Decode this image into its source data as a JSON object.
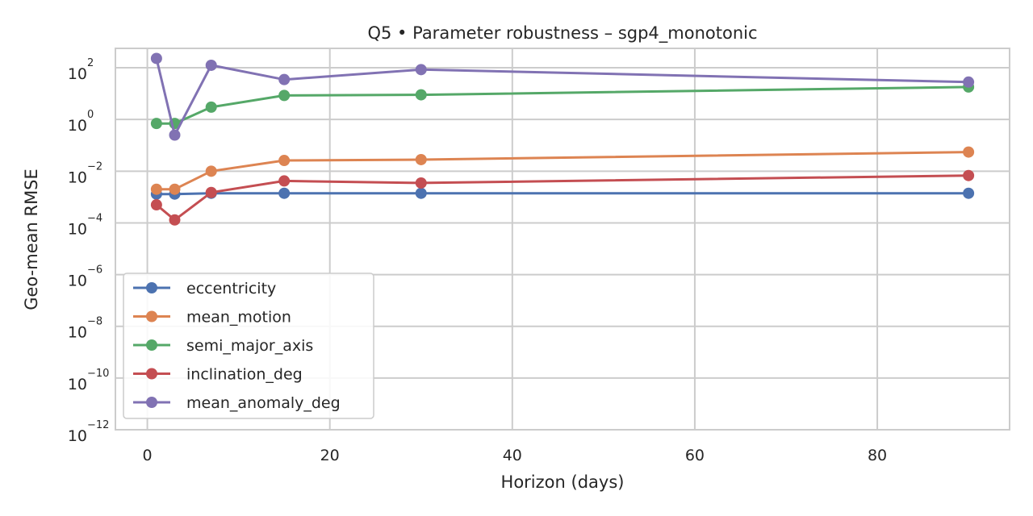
{
  "chart_data": {
    "type": "line",
    "title": "Q5 • Parameter robustness – sgp4_monotonic",
    "xlabel": "Horizon (days)",
    "ylabel": "Geo-mean RMSE",
    "yscale": "log",
    "xlim": [
      -3.5,
      94.5
    ],
    "ylim_log10": [
      -12,
      2.75
    ],
    "grid": true,
    "legend_position": "lower-left",
    "x_ticks": [
      0,
      20,
      40,
      60,
      80
    ],
    "x_tick_labels": [
      "0",
      "20",
      "40",
      "60",
      "80"
    ],
    "y_ticks_exp": [
      2,
      0,
      -2,
      -4,
      -6,
      -8,
      -10,
      -12
    ],
    "y_tick_labels": [
      {
        "base": "10",
        "exp": "2"
      },
      {
        "base": "10",
        "exp": "0"
      },
      {
        "base": "10",
        "exp": "−2"
      },
      {
        "base": "10",
        "exp": "−4"
      },
      {
        "base": "10",
        "exp": "−6"
      },
      {
        "base": "10",
        "exp": "−8"
      },
      {
        "base": "10",
        "exp": "−10"
      },
      {
        "base": "10",
        "exp": "−12"
      }
    ],
    "series": [
      {
        "name": "eccentricity",
        "color": "#4c72b0",
        "x": [
          1,
          3,
          7,
          15,
          30,
          90
        ],
        "y": [
          0.0013,
          0.0013,
          0.0014,
          0.0014,
          0.0014,
          0.0014
        ]
      },
      {
        "name": "mean_motion",
        "color": "#dd8452",
        "x": [
          1,
          3,
          7,
          15,
          30,
          90
        ],
        "y": [
          0.002,
          0.002,
          0.01,
          0.026,
          0.028,
          0.055
        ]
      },
      {
        "name": "semi_major_axis",
        "color": "#55a868",
        "x": [
          1,
          3,
          7,
          15,
          30,
          90
        ],
        "y": [
          0.7,
          0.7,
          3.0,
          8.5,
          9.0,
          18.0
        ]
      },
      {
        "name": "inclination_deg",
        "color": "#c44e52",
        "x": [
          1,
          3,
          7,
          15,
          30,
          90
        ],
        "y": [
          0.0005,
          0.00013,
          0.0015,
          0.0042,
          0.0035,
          0.0068
        ]
      },
      {
        "name": "mean_anomaly_deg",
        "color": "#8172b3",
        "x": [
          1,
          3,
          7,
          15,
          30,
          90
        ],
        "y": [
          230,
          0.25,
          125,
          35,
          85,
          28
        ]
      }
    ]
  }
}
